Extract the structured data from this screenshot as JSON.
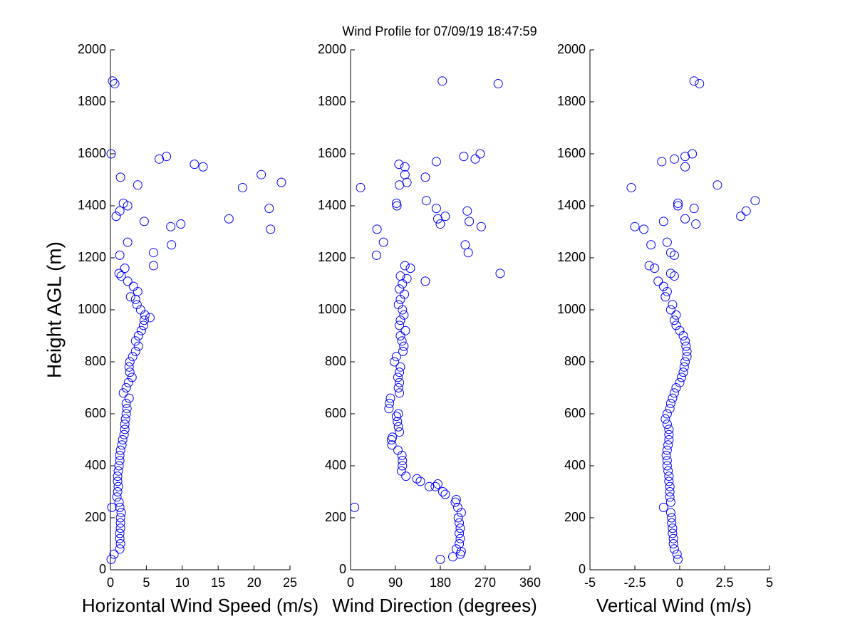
{
  "title": "Wind Profile for  07/09/19 18:47:59",
  "chart_data": [
    {
      "type": "scatter",
      "xlabel": "Horizontal Wind Speed (m/s)",
      "ylabel": "Height AGL (m)",
      "color": "#0000ff",
      "xlim": [
        0,
        25
      ],
      "xticks": [
        0,
        5,
        10,
        15,
        20,
        25
      ],
      "ylim": [
        0,
        2000
      ],
      "yticks": [
        0,
        200,
        400,
        600,
        800,
        1000,
        1200,
        1400,
        1600,
        1800,
        2000
      ],
      "x": [
        0.1,
        0.5,
        1.3,
        1.4,
        1.3,
        1.3,
        1.4,
        1.4,
        1.4,
        1.5,
        0.2,
        1.3,
        1.2,
        0.9,
        1.0,
        1.1,
        1.0,
        1.0,
        1.1,
        1.2,
        1.3,
        1.3,
        1.4,
        1.6,
        1.7,
        1.9,
        2.0,
        2.0,
        2.1,
        2.2,
        2.3,
        2.2,
        2.6,
        1.8,
        2.2,
        2.5,
        3.0,
        2.7,
        2.6,
        2.7,
        3.1,
        3.5,
        3.9,
        3.5,
        3.9,
        4.3,
        4.6,
        4.7,
        5.5,
        4.8,
        4.2,
        3.7,
        3.5,
        2.8,
        3.8,
        3.2,
        2.4,
        1.5,
        1.2,
        2.0,
        6.0,
        1.3,
        6.0,
        8.5,
        2.4,
        22.3,
        8.4,
        9.8,
        4.7,
        16.5,
        0.8,
        1.3,
        22.1,
        2.4,
        1.8,
        18.4,
        3.8,
        23.8,
        1.4,
        21.0,
        12.9,
        11.7,
        6.8,
        7.8,
        0.1,
        0.6,
        0.3
      ],
      "y": [
        40,
        60,
        80,
        100,
        120,
        140,
        160,
        180,
        200,
        220,
        240,
        240,
        260,
        280,
        300,
        320,
        340,
        360,
        380,
        400,
        420,
        440,
        460,
        480,
        500,
        520,
        540,
        560,
        580,
        600,
        620,
        640,
        660,
        680,
        700,
        720,
        740,
        760,
        780,
        800,
        820,
        840,
        860,
        880,
        900,
        920,
        940,
        960,
        970,
        980,
        1000,
        1020,
        1040,
        1050,
        1070,
        1090,
        1110,
        1130,
        1140,
        1160,
        1170,
        1210,
        1220,
        1250,
        1260,
        1310,
        1320,
        1330,
        1340,
        1350,
        1360,
        1380,
        1390,
        1400,
        1410,
        1470,
        1480,
        1490,
        1510,
        1520,
        1550,
        1560,
        1580,
        1590,
        1600,
        1870,
        1880
      ]
    },
    {
      "type": "scatter",
      "xlabel": "Wind Direction (degrees)",
      "color": "#0000ff",
      "xlim": [
        0,
        360
      ],
      "xticks": [
        0,
        90,
        180,
        270,
        360
      ],
      "ylim": [
        0,
        2000
      ],
      "yticks": [
        0,
        200,
        400,
        600,
        800,
        1000,
        1200,
        1400,
        1600,
        1800,
        2000
      ],
      "x": [
        180,
        205,
        220,
        222,
        212,
        218,
        220,
        218,
        220,
        218,
        216,
        222,
        8,
        215,
        210,
        212,
        190,
        185,
        170,
        175,
        158,
        140,
        133,
        111,
        102,
        104,
        104,
        103,
        95,
        83,
        82,
        84,
        98,
        96,
        94,
        92,
        96,
        77,
        78,
        80,
        98,
        96,
        98,
        95,
        98,
        100,
        88,
        92,
        105,
        107,
        103,
        100,
        110,
        98,
        100,
        107,
        104,
        96,
        100,
        108,
        98,
        104,
        150,
        113,
        100,
        300,
        120,
        109,
        52,
        236,
        230,
        66,
        53,
        262,
        180,
        238,
        175,
        190,
        234,
        172,
        93,
        92,
        152,
        20,
        98,
        113,
        150,
        109,
        109,
        97,
        172,
        250,
        227,
        260,
        296,
        184
      ],
      "y": [
        40,
        50,
        60,
        70,
        80,
        100,
        120,
        140,
        160,
        180,
        200,
        220,
        240,
        240,
        260,
        270,
        290,
        300,
        320,
        330,
        320,
        340,
        350,
        360,
        380,
        400,
        420,
        440,
        460,
        480,
        500,
        510,
        530,
        550,
        570,
        590,
        600,
        620,
        640,
        660,
        680,
        700,
        720,
        740,
        760,
        780,
        800,
        820,
        840,
        860,
        880,
        900,
        920,
        940,
        960,
        980,
        1000,
        1020,
        1040,
        1060,
        1080,
        1100,
        1110,
        1120,
        1130,
        1140,
        1160,
        1170,
        1210,
        1220,
        1250,
        1260,
        1310,
        1320,
        1330,
        1340,
        1350,
        1360,
        1380,
        1390,
        1400,
        1410,
        1420,
        1470,
        1480,
        1490,
        1510,
        1520,
        1550,
        1560,
        1570,
        1580,
        1590,
        1600,
        1870,
        1880
      ]
    },
    {
      "type": "scatter",
      "xlabel": "Vertical Wind (m/s)",
      "color": "#0000ff",
      "xlim": [
        -5,
        5
      ],
      "xticks": [
        -5,
        -2.5,
        0,
        2.5,
        5
      ],
      "ylim": [
        0,
        2000
      ],
      "yticks": [
        0,
        200,
        400,
        600,
        800,
        1000,
        1200,
        1400,
        1600,
        1800,
        2000
      ],
      "x": [
        -0.1,
        -0.15,
        -0.3,
        -0.35,
        -0.35,
        -0.4,
        -0.4,
        -0.45,
        -0.45,
        -0.5,
        -0.9,
        -0.5,
        -0.55,
        -0.55,
        -0.55,
        -0.6,
        -0.6,
        -0.65,
        -0.7,
        -0.7,
        -0.75,
        -0.7,
        -0.65,
        -0.6,
        -0.6,
        -0.6,
        -0.7,
        -0.8,
        -0.7,
        -0.55,
        -0.5,
        -0.4,
        -0.3,
        -0.2,
        0.0,
        0.1,
        0.2,
        0.25,
        0.3,
        0.4,
        0.4,
        0.35,
        0.3,
        0.2,
        0.0,
        -0.2,
        -0.3,
        -0.2,
        -0.5,
        -0.4,
        -0.8,
        -0.7,
        -0.9,
        -1.2,
        -0.3,
        -0.5,
        -1.4,
        -1.7,
        -0.3,
        -0.5,
        -1.6,
        -0.7,
        -2.0,
        -2.5,
        0.9,
        -0.9,
        0.3,
        3.4,
        3.7,
        0.8,
        -0.1,
        -0.1,
        4.2,
        -2.7,
        2.1,
        0.3,
        -1.0,
        -0.3,
        0.3,
        0.7,
        1.1,
        0.8
      ],
      "y": [
        40,
        60,
        80,
        100,
        120,
        140,
        160,
        180,
        200,
        220,
        240,
        260,
        280,
        300,
        320,
        340,
        360,
        380,
        400,
        420,
        440,
        460,
        480,
        500,
        520,
        540,
        560,
        580,
        600,
        620,
        640,
        660,
        680,
        700,
        720,
        740,
        760,
        780,
        800,
        820,
        840,
        860,
        880,
        900,
        920,
        940,
        960,
        980,
        1000,
        1020,
        1050,
        1070,
        1090,
        1110,
        1130,
        1140,
        1160,
        1170,
        1210,
        1220,
        1250,
        1260,
        1310,
        1320,
        1330,
        1340,
        1350,
        1360,
        1380,
        1390,
        1400,
        1410,
        1420,
        1470,
        1480,
        1550,
        1570,
        1580,
        1590,
        1600,
        1870,
        1880
      ]
    }
  ]
}
